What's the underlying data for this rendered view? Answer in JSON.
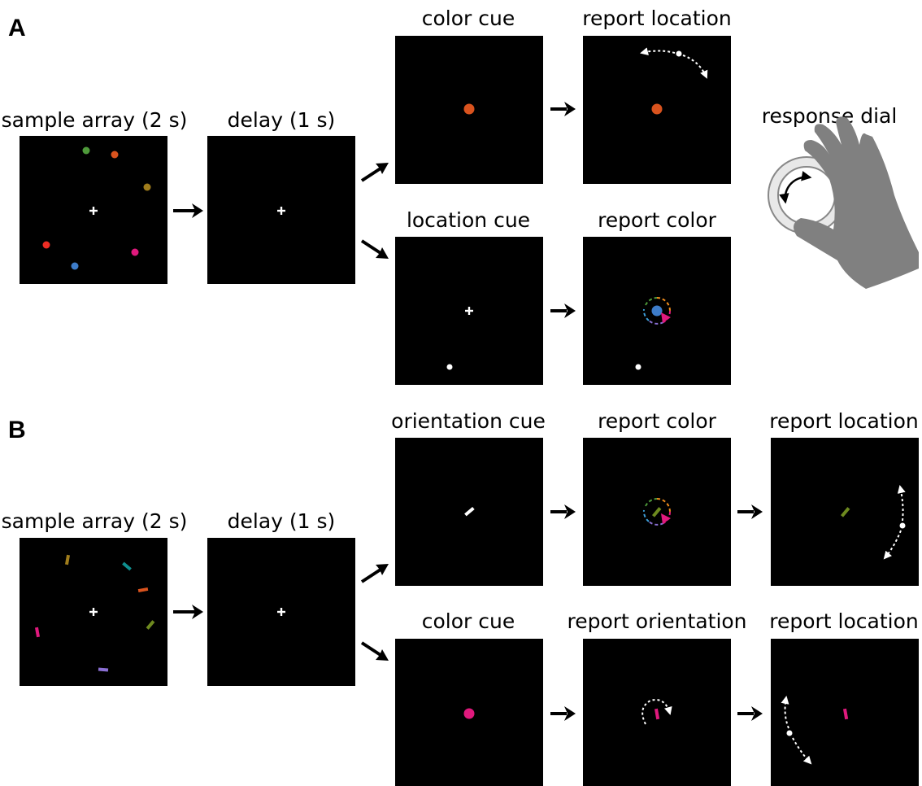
{
  "panel_a": {
    "letter": "A",
    "sample_label": "sample array (2 s)",
    "delay_label": "delay (1 s)",
    "color_cue_label": "color cue",
    "report_location_label": "report location",
    "location_cue_label": "location cue",
    "report_color_label": "report color",
    "dial_label": "response dial"
  },
  "panel_b": {
    "letter": "B",
    "sample_label": "sample array (2 s)",
    "delay_label": "delay (1 s)",
    "orientation_cue_label": "orientation cue",
    "report_color_label": "report color",
    "report_location_top_label": "report location",
    "color_cue_label": "color cue",
    "report_orientation_label": "report orientation",
    "report_location_bottom_label": "report location"
  },
  "colors": {
    "background": "#ffffff",
    "screen": "#000000",
    "fixation": "#ffffff",
    "green": "#4e9a3a",
    "orange": "#d9531e",
    "olive": "#a07d1c",
    "red": "#ee2d24",
    "blue": "#3d7cc9",
    "magenta": "#e0197d",
    "teal": "#0f8f8f",
    "olive_green": "#6e8a1f",
    "purple": "#8a6fd3",
    "hand": "#808080",
    "dial_ring": "#e6e6e6"
  }
}
